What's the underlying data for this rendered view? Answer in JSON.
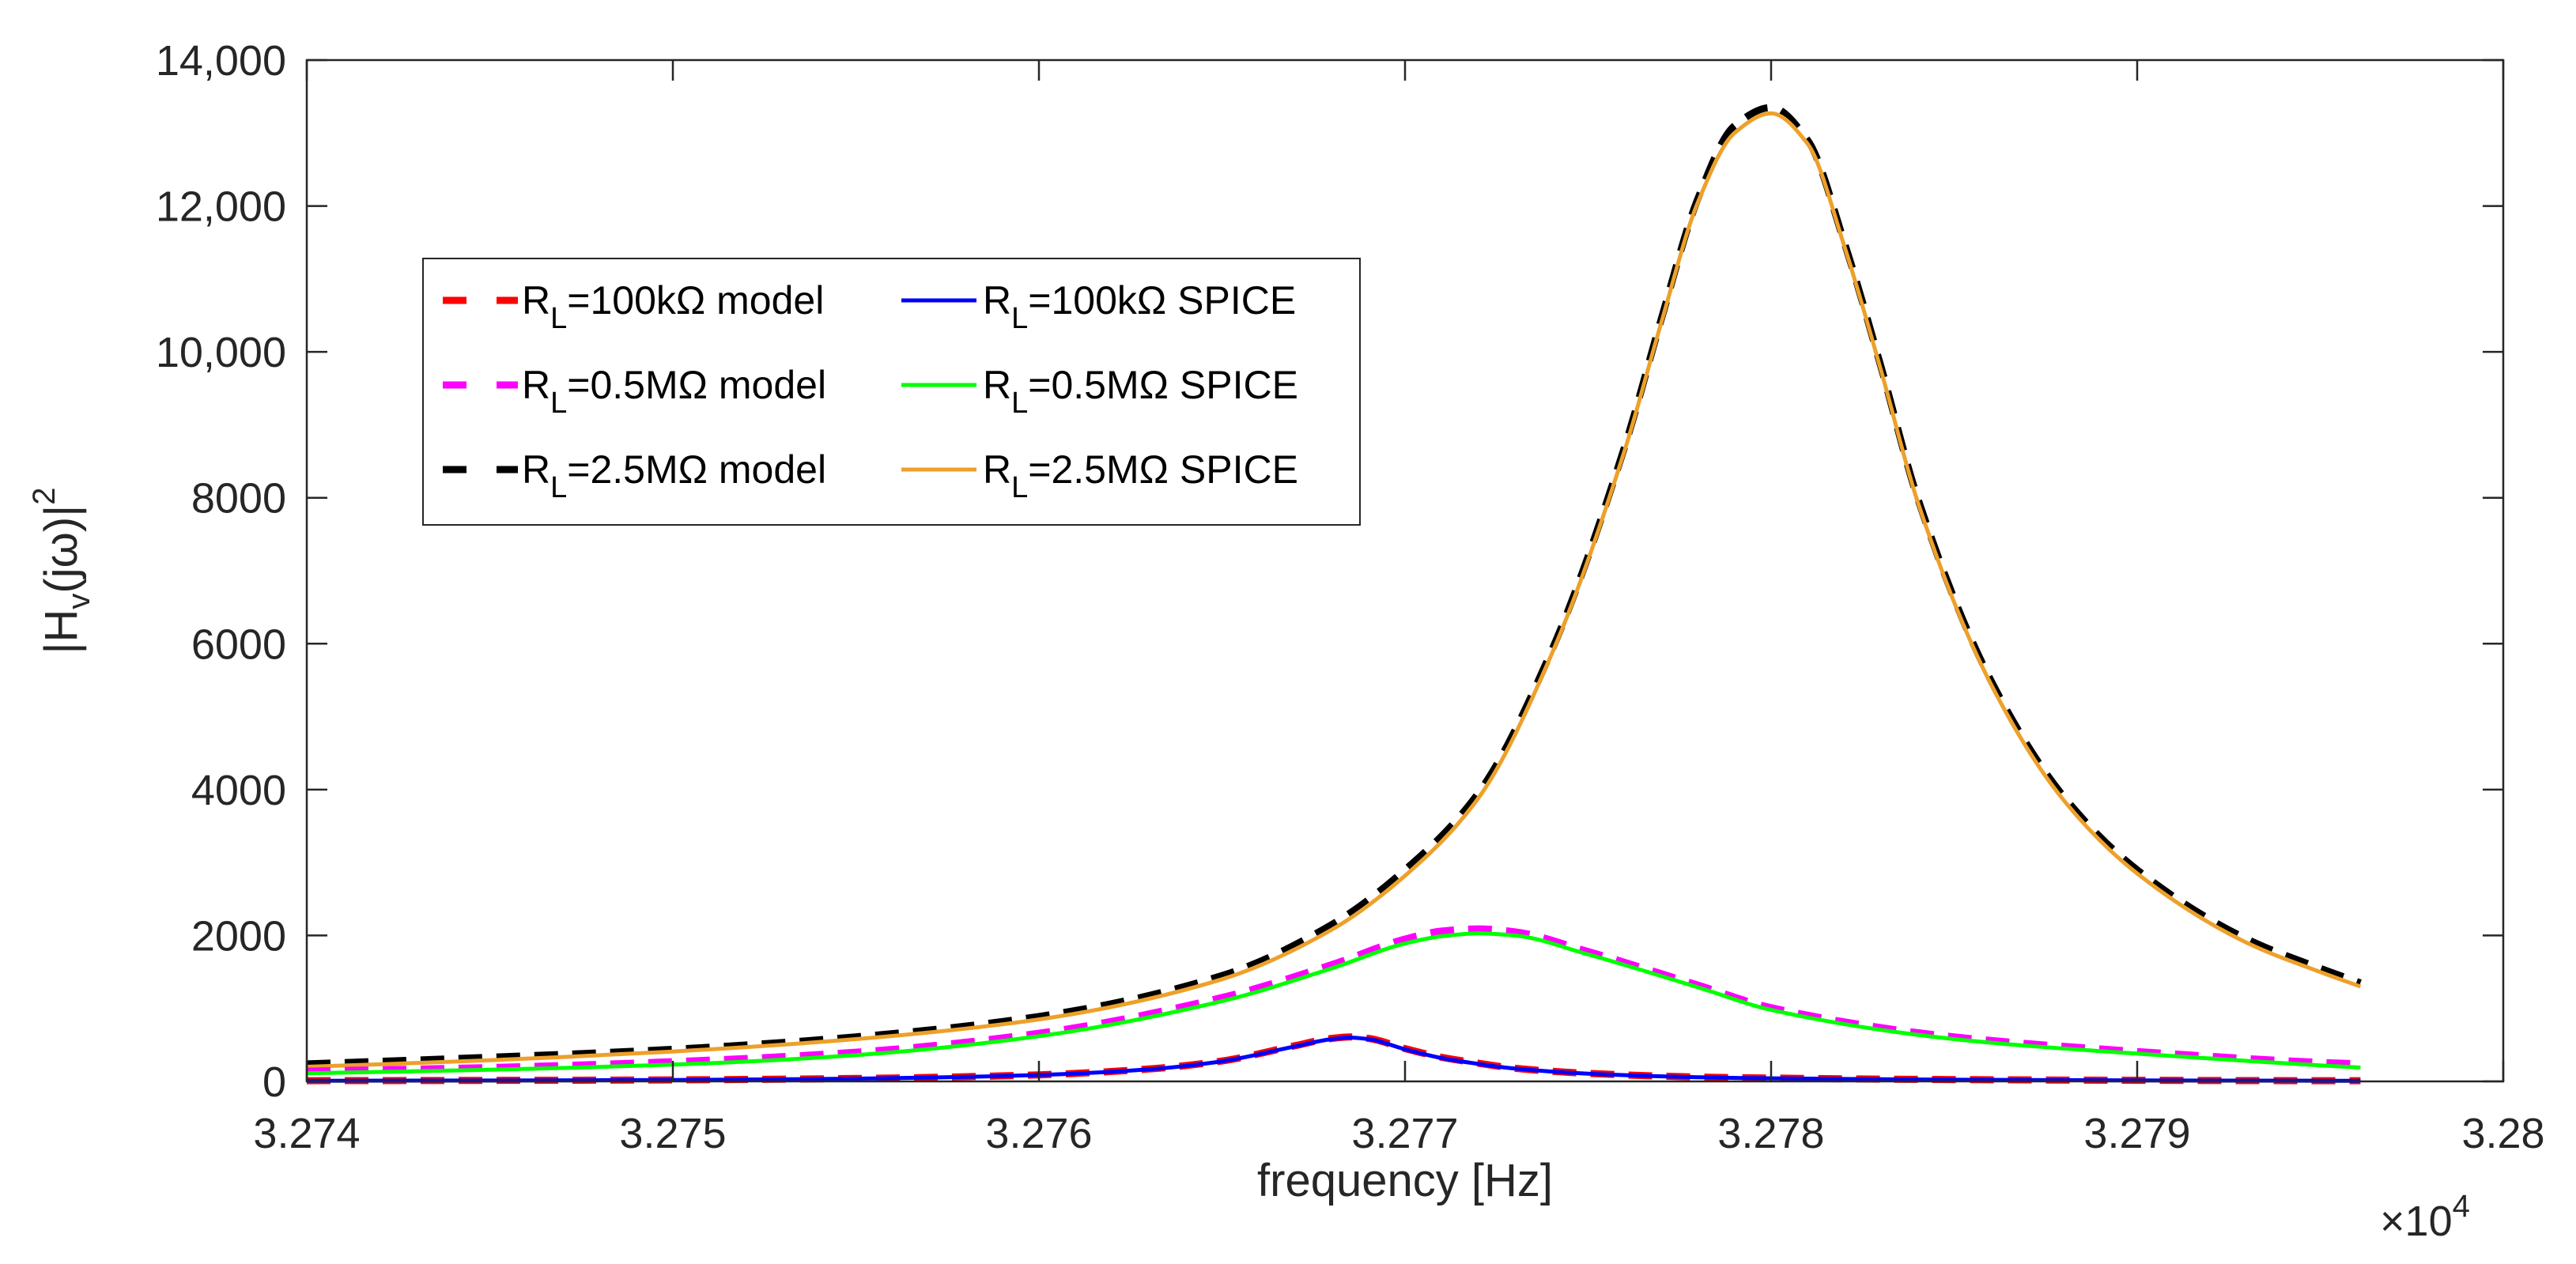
{
  "chart_data": {
    "type": "line",
    "title": "",
    "xlabel": "frequency [Hz]",
    "ylabel_parts": {
      "base": "|H",
      "sub": "v",
      "middle": "(jω)|",
      "sup": "2"
    },
    "x_exponent_parts": {
      "prefix": "×10",
      "sup": "4"
    },
    "xlim": [
      3.274,
      3.28
    ],
    "ylim": [
      0,
      14000
    ],
    "x_ticks": [
      3.274,
      3.275,
      3.276,
      3.277,
      3.278,
      3.279,
      3.28
    ],
    "x_tick_labels": [
      "3.274",
      "3.275",
      "3.276",
      "3.277",
      "3.278",
      "3.279",
      "3.28"
    ],
    "y_ticks": [
      0,
      2000,
      4000,
      6000,
      8000,
      10000,
      12000,
      14000
    ],
    "y_tick_labels": [
      "0",
      "2000",
      "4000",
      "6000",
      "8000",
      "10,000",
      "12,000",
      "14,000"
    ],
    "grid": false,
    "legend_position": "upper-left",
    "series": [
      {
        "name": "R_L=100kΩ model",
        "legend": {
          "base": "R",
          "sub": "L",
          "rest": "=100kΩ model"
        },
        "color": "#ff0000",
        "style": "dashed",
        "x": [
          3.274,
          3.2745,
          3.275,
          3.2755,
          3.276,
          3.2763,
          3.2765,
          3.2767,
          3.2768,
          3.27685,
          3.2769,
          3.277,
          3.2771,
          3.2772,
          3.2773,
          3.2775,
          3.2778,
          3.278,
          3.2785,
          3.279,
          3.2795,
          3.27961
        ],
        "y": [
          10,
          14,
          21,
          40,
          90,
          170,
          280,
          490,
          590,
          610,
          590,
          450,
          330,
          250,
          180,
          110,
          60,
          45,
          25,
          15,
          10,
          10
        ]
      },
      {
        "name": "R_L=100kΩ SPICE",
        "legend": {
          "base": "R",
          "sub": "L",
          "rest": "=100kΩ SPICE"
        },
        "color": "#0000ff",
        "style": "solid",
        "x": [
          3.274,
          3.2745,
          3.275,
          3.2755,
          3.276,
          3.2763,
          3.2765,
          3.2767,
          3.2768,
          3.27685,
          3.2769,
          3.277,
          3.2771,
          3.2772,
          3.2773,
          3.2775,
          3.2778,
          3.278,
          3.2785,
          3.279,
          3.2795,
          3.27961
        ],
        "y": [
          8,
          12,
          19,
          38,
          88,
          165,
          275,
          480,
          580,
          600,
          580,
          440,
          320,
          240,
          175,
          105,
          57,
          42,
          23,
          14,
          9,
          9
        ]
      },
      {
        "name": "R_L=0.5MΩ model",
        "legend": {
          "base": "R",
          "sub": "L",
          "rest": "=0.5MΩ model"
        },
        "color": "#ff00ff",
        "style": "dashed",
        "x": [
          3.274,
          3.2745,
          3.275,
          3.2755,
          3.276,
          3.2765,
          3.2768,
          3.277,
          3.2771,
          3.2772,
          3.2773,
          3.2775,
          3.2778,
          3.278,
          3.2785,
          3.279,
          3.2795,
          3.27961
        ],
        "y": [
          140,
          190,
          270,
          400,
          660,
          1150,
          1600,
          1950,
          2060,
          2090,
          2050,
          1780,
          1320,
          1010,
          610,
          410,
          260,
          240
        ]
      },
      {
        "name": "R_L=0.5MΩ SPICE",
        "legend": {
          "base": "R",
          "sub": "L",
          "rest": "=0.5MΩ SPICE"
        },
        "color": "#00ff00",
        "style": "solid",
        "x": [
          3.274,
          3.2745,
          3.275,
          3.2755,
          3.276,
          3.2765,
          3.2768,
          3.277,
          3.2771,
          3.2772,
          3.2773,
          3.2775,
          3.2778,
          3.278,
          3.2785,
          3.279,
          3.2795,
          3.27961
        ],
        "y": [
          110,
          160,
          230,
          360,
          620,
          1100,
          1550,
          1890,
          1990,
          2030,
          2000,
          1740,
          1290,
          980,
          580,
          380,
          220,
          190
        ]
      },
      {
        "name": "R_L=2.5MΩ model",
        "legend": {
          "base": "R",
          "sub": "L",
          "rest": "=2.5MΩ model"
        },
        "color": "#000000",
        "style": "dashed",
        "x": [
          3.274,
          3.2745,
          3.275,
          3.2755,
          3.276,
          3.2765,
          3.2768,
          3.277,
          3.2772,
          3.2774,
          3.2776,
          3.2777,
          3.2778,
          3.2779,
          3.278,
          3.2781,
          3.2782,
          3.2783,
          3.2784,
          3.2786,
          3.2788,
          3.279,
          3.2793,
          3.2795,
          3.27961
        ],
        "y": [
          240,
          330,
          440,
          610,
          890,
          1450,
          2150,
          2900,
          3950,
          5900,
          8700,
          10450,
          12100,
          13100,
          13350,
          12900,
          11500,
          9800,
          8000,
          5500,
          3900,
          2900,
          1950,
          1550,
          1350
        ]
      },
      {
        "name": "R_L=2.5MΩ SPICE",
        "legend": {
          "base": "R",
          "sub": "L",
          "rest": "=2.5MΩ SPICE"
        },
        "color": "#eda02a",
        "style": "solid",
        "x": [
          3.274,
          3.2745,
          3.275,
          3.2755,
          3.276,
          3.2765,
          3.2768,
          3.277,
          3.2772,
          3.2774,
          3.2776,
          3.2777,
          3.2778,
          3.2779,
          3.278,
          3.2781,
          3.2782,
          3.2783,
          3.2784,
          3.2786,
          3.2788,
          3.279,
          3.2793,
          3.2795,
          3.27961
        ],
        "y": [
          200,
          290,
          410,
          580,
          850,
          1400,
          2080,
          2820,
          3880,
          5850,
          8650,
          10400,
          12050,
          13000,
          13270,
          12850,
          11450,
          9750,
          7950,
          5450,
          3850,
          2850,
          1900,
          1500,
          1300
        ]
      }
    ]
  }
}
